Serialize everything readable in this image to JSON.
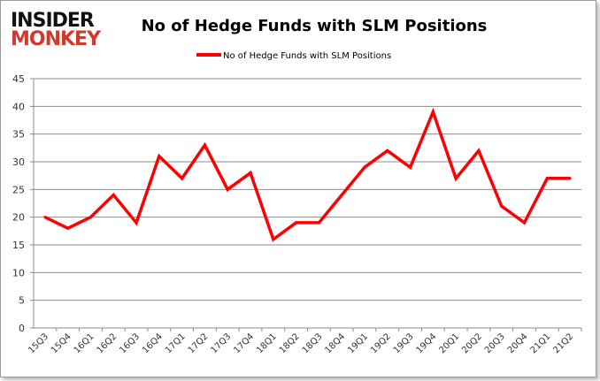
{
  "logo": {
    "line1": "INSIDER",
    "line2": "MONKEY",
    "colors": {
      "line1": "#111111",
      "line2": "#d0392b"
    }
  },
  "chart_data": {
    "type": "line",
    "title": "No of Hedge Funds with SLM Positions",
    "xlabel": "",
    "ylabel": "",
    "categories": [
      "15Q3",
      "15Q4",
      "16Q1",
      "16Q2",
      "16Q3",
      "16Q4",
      "17Q1",
      "17Q2",
      "17Q3",
      "17Q4",
      "18Q1",
      "18Q2",
      "18Q3",
      "18Q4",
      "19Q1",
      "19Q2",
      "19Q3",
      "19Q4",
      "20Q1",
      "20Q2",
      "20Q3",
      "20Q4",
      "21Q1",
      "21Q2"
    ],
    "series": [
      {
        "name": "No of Hedge Funds with SLM Positions",
        "color": "#ff0000",
        "values": [
          20,
          18,
          20,
          24,
          19,
          31,
          27,
          33,
          25,
          28,
          16,
          19,
          19,
          24,
          29,
          32,
          29,
          39,
          27,
          32,
          22,
          19,
          27,
          27
        ]
      }
    ],
    "ylim": [
      0,
      45
    ],
    "yticks": [
      0,
      5,
      10,
      15,
      20,
      25,
      30,
      35,
      40,
      45
    ],
    "grid": true,
    "legend": "top-center"
  }
}
